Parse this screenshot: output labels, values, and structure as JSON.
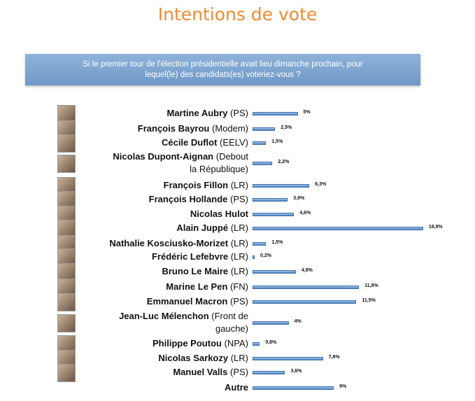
{
  "title": "Intentions de vote",
  "question": "Si le premier tour de l'élection présidentielle avait lieu dimanche prochain, pour lequel(le) des candidats(es) voteriez-vous ?",
  "colors": {
    "title": "#f08a33",
    "bar": "#4f82c0",
    "question_box": "#7ea6d2"
  },
  "chart_data": {
    "type": "bar",
    "orientation": "horizontal",
    "categories": [
      "Martine Aubry (PS)",
      "François Bayrou (Modem)",
      "Cécile Duflot (EELV)",
      "Nicolas Dupont-Aignan (Debout la République)",
      "François Fillon (LR)",
      "François Hollande (PS)",
      "Nicolas Hulot",
      "Alain Juppé (LR)",
      "Nathalie Kosciusko-Morizet (LR)",
      "Frédéric Lefebvre (LR)",
      "Bruno Le Maire (LR)",
      "Marine Le Pen (FN)",
      "Emmanuel Macron (PS)",
      "Jean-Luc Mélenchon (Front de gauche)",
      "Philippe Poutou (NPA)",
      "Nicolas Sarkozy (LR)",
      "Manuel Valls (PS)",
      "Autre"
    ],
    "values": [
      5,
      2.5,
      1.5,
      2.2,
      6.3,
      3.9,
      4.6,
      18.9,
      1.5,
      0.2,
      4.8,
      11.8,
      11.5,
      4,
      0.8,
      7.8,
      3.6,
      9
    ],
    "value_labels": [
      "5%",
      "2,5%",
      "1,5%",
      "2,2%",
      "6,3%",
      "3,9%",
      "4,6%",
      "18,9%",
      "1,5%",
      "0,2%",
      "4,8%",
      "11,8%",
      "11,5%",
      "4%",
      "0,8%",
      "7,8%",
      "3,6%",
      "9%"
    ],
    "candidates": [
      {
        "name": "Martine Aubry",
        "party": " (PS)",
        "photo": true
      },
      {
        "name": "François Bayrou",
        "party": " (Modem)",
        "photo": true
      },
      {
        "name": "Cécile Duflot",
        "party": " (EELV)",
        "photo": true
      },
      {
        "name": "Nicolas Dupont-Aignan",
        "party": " (Debout",
        "party2": "la République)",
        "photo": true
      },
      {
        "name": "François Fillon",
        "party": " (LR)",
        "photo": true
      },
      {
        "name": "François Hollande",
        "party": " (PS)",
        "photo": true
      },
      {
        "name": "Nicolas Hulot",
        "party": "",
        "photo": true
      },
      {
        "name": "Alain Juppé",
        "party": " (LR)",
        "photo": true
      },
      {
        "name": "Nathalie Kosciusko-Morizet",
        "party": " (LR)",
        "photo": true
      },
      {
        "name": "Frédéric Lefebvre",
        "party": " (LR)",
        "photo": true
      },
      {
        "name": "Bruno Le Maire",
        "party": " (LR)",
        "photo": true
      },
      {
        "name": "Marine Le Pen",
        "party": " (FN)",
        "photo": true
      },
      {
        "name": "Emmanuel Macron",
        "party": " (PS)",
        "photo": true
      },
      {
        "name": "Jean-Luc Mélenchon",
        "party": " (Front de",
        "party2": "gauche)",
        "photo": true
      },
      {
        "name": "Philippe Poutou",
        "party": " (NPA)",
        "photo": true
      },
      {
        "name": "Nicolas Sarkozy",
        "party": " (LR)",
        "photo": true
      },
      {
        "name": "Manuel Valls",
        "party": " (PS)",
        "photo": true
      },
      {
        "name": "Autre",
        "party": "",
        "photo": false
      }
    ],
    "xlim": [
      0,
      19
    ],
    "grid": false,
    "legend": "none"
  }
}
